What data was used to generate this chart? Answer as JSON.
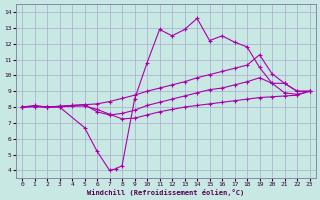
{
  "bg_color": "#c8e8e4",
  "grid_color": "#aaaacc",
  "line_color": "#aa00aa",
  "xlabel": "Windchill (Refroidissement éolien,°C)",
  "xlim_min": -0.5,
  "xlim_max": 23.5,
  "ylim_min": 3.5,
  "ylim_max": 14.5,
  "xticks": [
    0,
    1,
    2,
    3,
    4,
    5,
    6,
    7,
    8,
    9,
    10,
    11,
    12,
    13,
    14,
    15,
    16,
    17,
    18,
    19,
    20,
    21,
    22,
    23
  ],
  "yticks": [
    4,
    5,
    6,
    7,
    8,
    9,
    10,
    11,
    12,
    13,
    14
  ],
  "s1_x": [
    0,
    1,
    2,
    3,
    4,
    5,
    6,
    7,
    8,
    9,
    10,
    11,
    12,
    13,
    14,
    15,
    16,
    17,
    18,
    19,
    20,
    21,
    22,
    23
  ],
  "s1_y": [
    8.0,
    8.05,
    8.0,
    8.05,
    8.1,
    8.15,
    8.2,
    8.35,
    8.55,
    8.75,
    9.0,
    9.2,
    9.4,
    9.6,
    9.85,
    10.05,
    10.25,
    10.45,
    10.65,
    11.3,
    10.1,
    9.5,
    9.0,
    9.0
  ],
  "s2_x": [
    0,
    1,
    2,
    3,
    4,
    5,
    6,
    7,
    8,
    9,
    10,
    11,
    12,
    13,
    14,
    15,
    16,
    17,
    18,
    19,
    20,
    21,
    22,
    23
  ],
  "s2_y": [
    8.0,
    8.05,
    8.0,
    8.05,
    8.1,
    8.15,
    7.7,
    7.5,
    7.6,
    7.8,
    8.1,
    8.3,
    8.5,
    8.7,
    8.9,
    9.1,
    9.2,
    9.4,
    9.6,
    9.85,
    9.5,
    8.9,
    8.8,
    9.0
  ],
  "s3_x": [
    0,
    1,
    2,
    3,
    4,
    5,
    6,
    7,
    8,
    9,
    10,
    11,
    12,
    13,
    14,
    15,
    16,
    17,
    18,
    19,
    20,
    21,
    22,
    23
  ],
  "s3_y": [
    8.0,
    8.02,
    8.0,
    8.02,
    8.05,
    8.07,
    7.85,
    7.55,
    7.25,
    7.3,
    7.5,
    7.7,
    7.85,
    8.0,
    8.1,
    8.2,
    8.3,
    8.4,
    8.5,
    8.6,
    8.65,
    8.7,
    8.75,
    9.0
  ],
  "s4_x": [
    0,
    1,
    2,
    3,
    5,
    6,
    7,
    7.5,
    8,
    9,
    10,
    11,
    12,
    13,
    14,
    15,
    16,
    17,
    18,
    19,
    20,
    21,
    22,
    23
  ],
  "s4_y": [
    8.0,
    8.1,
    8.0,
    8.0,
    6.7,
    5.2,
    4.0,
    4.1,
    4.3,
    8.5,
    10.8,
    12.9,
    12.5,
    12.9,
    13.6,
    12.2,
    12.5,
    12.1,
    11.8,
    10.5,
    9.5,
    9.5,
    9.0,
    9.0
  ]
}
